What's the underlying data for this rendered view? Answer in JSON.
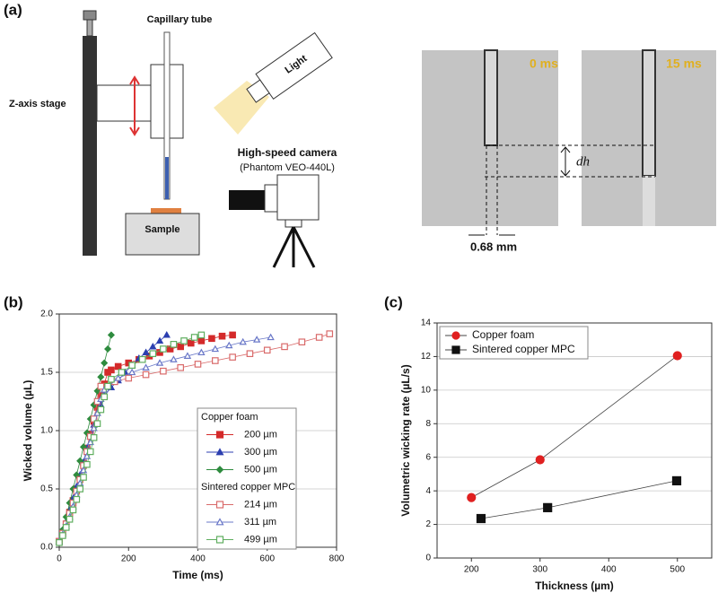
{
  "panels": [
    "(a)",
    "(b)",
    "(c)"
  ],
  "diagram": {
    "capillary": "Capillary tube",
    "stage": "Z-axis stage",
    "light": "Light",
    "sample": "Sample",
    "camera": "High-speed camera",
    "camera_model": "(Phantom VEO-440L)",
    "frame0": "0 ms",
    "frame1": "15 ms",
    "dh": "dh",
    "diameter": "0.68 mm"
  },
  "chart_data": [
    {
      "type": "line",
      "xlabel": "Time (ms)",
      "ylabel": "Wicked volume (µL)",
      "xlim": [
        0,
        800
      ],
      "xticks": [
        0,
        200,
        400,
        600,
        800
      ],
      "ylim": [
        0,
        2.0
      ],
      "yticks": [
        {
          "value": 0,
          "label": "0.0"
        },
        0.5,
        {
          "value": 1,
          "label": "1.0"
        },
        1.5,
        {
          "value": 2,
          "label": "2.0"
        }
      ],
      "grid": true,
      "legend": "lower right",
      "legend_groups": [
        "Copper foam",
        "Sintered copper MPC"
      ],
      "series": [
        {
          "name": "200 µm",
          "color": "#d42a2a",
          "marker": "square",
          "filled": true,
          "x": [
            0,
            10,
            20,
            30,
            40,
            50,
            60,
            70,
            80,
            90,
            100,
            110,
            120,
            130,
            140,
            150,
            170,
            200,
            230,
            260,
            290,
            320,
            350,
            380,
            410,
            440,
            470,
            500
          ],
          "values": [
            0.05,
            0.12,
            0.2,
            0.3,
            0.4,
            0.5,
            0.6,
            0.72,
            0.85,
            0.97,
            1.08,
            1.2,
            1.3,
            1.4,
            1.5,
            1.52,
            1.55,
            1.58,
            1.61,
            1.64,
            1.67,
            1.7,
            1.72,
            1.75,
            1.77,
            1.79,
            1.81,
            1.82
          ]
        },
        {
          "name": "300 µm",
          "color": "#2c3fb0",
          "marker": "triangle",
          "filled": true,
          "x": [
            0,
            10,
            20,
            30,
            40,
            50,
            60,
            70,
            80,
            90,
            100,
            110,
            120,
            130,
            150,
            170,
            190,
            210,
            230,
            250,
            270,
            290,
            310
          ],
          "values": [
            0.05,
            0.13,
            0.22,
            0.32,
            0.42,
            0.52,
            0.62,
            0.73,
            0.85,
            0.95,
            1.05,
            1.15,
            1.22,
            1.3,
            1.37,
            1.43,
            1.5,
            1.56,
            1.62,
            1.67,
            1.72,
            1.77,
            1.82
          ]
        },
        {
          "name": "500 µm",
          "color": "#2e8b3e",
          "marker": "diamond",
          "filled": true,
          "x": [
            0,
            10,
            20,
            30,
            40,
            50,
            60,
            70,
            80,
            90,
            100,
            110,
            120,
            130,
            140,
            150
          ],
          "values": [
            0.05,
            0.15,
            0.26,
            0.38,
            0.5,
            0.62,
            0.74,
            0.86,
            0.98,
            1.1,
            1.22,
            1.34,
            1.46,
            1.58,
            1.7,
            1.82
          ]
        },
        {
          "name": "214 µm",
          "color": "#d96a6a",
          "marker": "square",
          "filled": false,
          "x": [
            0,
            10,
            20,
            30,
            40,
            50,
            60,
            70,
            80,
            90,
            100,
            110,
            120,
            160,
            200,
            250,
            300,
            350,
            400,
            450,
            500,
            550,
            600,
            650,
            700,
            750,
            780
          ],
          "values": [
            0.05,
            0.12,
            0.2,
            0.29,
            0.38,
            0.48,
            0.58,
            0.7,
            0.82,
            0.95,
            1.1,
            1.25,
            1.38,
            1.42,
            1.45,
            1.48,
            1.51,
            1.54,
            1.57,
            1.6,
            1.63,
            1.66,
            1.69,
            1.72,
            1.76,
            1.8,
            1.83
          ]
        },
        {
          "name": "311 µm",
          "color": "#6a78c8",
          "marker": "triangle",
          "filled": false,
          "x": [
            0,
            10,
            20,
            30,
            40,
            50,
            60,
            70,
            80,
            90,
            100,
            110,
            120,
            130,
            170,
            210,
            250,
            290,
            330,
            370,
            410,
            450,
            490,
            530,
            570,
            610
          ],
          "values": [
            0.05,
            0.11,
            0.18,
            0.26,
            0.35,
            0.45,
            0.55,
            0.66,
            0.78,
            0.9,
            1.02,
            1.15,
            1.27,
            1.35,
            1.45,
            1.5,
            1.54,
            1.58,
            1.61,
            1.64,
            1.67,
            1.7,
            1.73,
            1.76,
            1.78,
            1.8
          ]
        },
        {
          "name": "499 µm",
          "color": "#5fae5f",
          "marker": "square",
          "filled": false,
          "x": [
            0,
            10,
            20,
            30,
            40,
            50,
            60,
            70,
            80,
            90,
            100,
            110,
            120,
            130,
            140,
            150,
            180,
            210,
            240,
            270,
            300,
            330,
            360,
            390,
            410
          ],
          "values": [
            0.04,
            0.1,
            0.17,
            0.24,
            0.32,
            0.41,
            0.5,
            0.6,
            0.71,
            0.82,
            0.94,
            1.06,
            1.18,
            1.29,
            1.38,
            1.44,
            1.5,
            1.56,
            1.61,
            1.66,
            1.7,
            1.74,
            1.77,
            1.8,
            1.82
          ]
        }
      ]
    },
    {
      "type": "line",
      "xlabel": "Thickness (µm)",
      "ylabel": "Volumetric wicking rate (µL/s)",
      "xlim": [
        150,
        550
      ],
      "xticks": [
        200,
        300,
        400,
        500
      ],
      "ylim": [
        0,
        14
      ],
      "yticks": [
        0,
        2,
        4,
        6,
        8,
        10,
        12,
        14
      ],
      "grid": true,
      "legend": "upper left",
      "series": [
        {
          "name": "Copper foam",
          "color": "#e02020",
          "marker": "circle",
          "filled": true,
          "x": [
            200,
            300,
            500
          ],
          "values": [
            3.6,
            5.85,
            12.05
          ]
        },
        {
          "name": "Sintered copper MPC",
          "color": "#111111",
          "marker": "square",
          "filled": true,
          "x": [
            214,
            311,
            499
          ],
          "values": [
            2.35,
            3.0,
            4.6
          ]
        }
      ]
    }
  ]
}
